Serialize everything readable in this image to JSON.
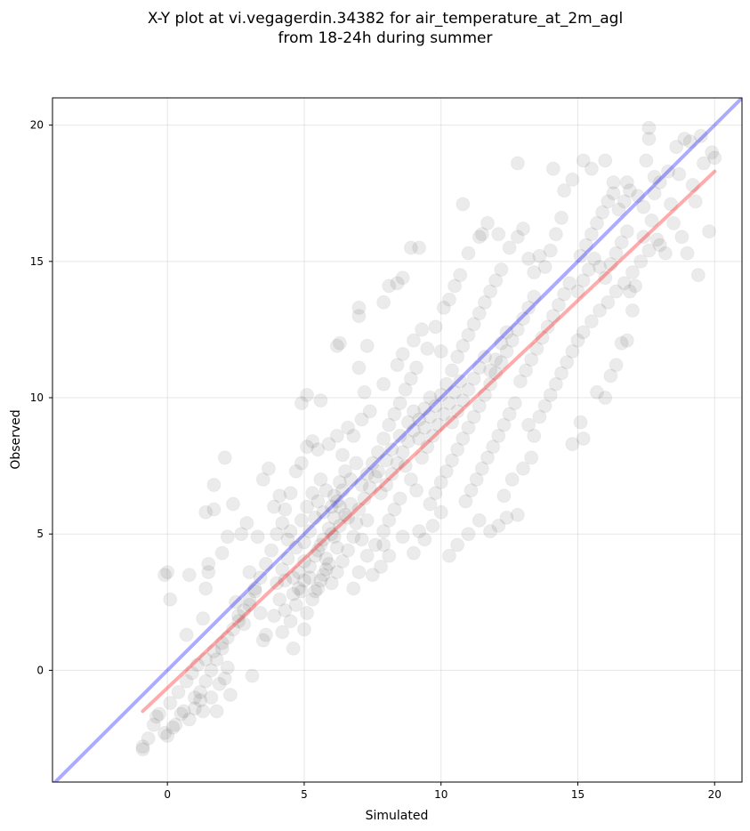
{
  "chart_data": {
    "type": "scatter",
    "title_line1": "X-Y plot at vi.vegagerdin.34382 for air_temperature_at_2m_agl",
    "title_line2": "from 18-24h during summer",
    "xlabel": "Simulated",
    "ylabel": "Observed",
    "xlim": [
      -4.2,
      21.0
    ],
    "ylim": [
      -4.1,
      21.0
    ],
    "xticks": [
      0,
      5,
      10,
      15,
      20
    ],
    "yticks": [
      0,
      5,
      10,
      15,
      20
    ],
    "grid": true,
    "point_color": "#000000",
    "point_alpha": 0.08,
    "identity_line": {
      "color": "#0000ff",
      "alpha": 0.33,
      "x": [
        -4.2,
        21.0
      ],
      "y": [
        -4.2,
        21.0
      ]
    },
    "regression_line": {
      "color": "#ff0000",
      "alpha": 0.33,
      "x": [
        -0.9,
        20.0
      ],
      "y": [
        -1.5,
        18.3
      ]
    },
    "points": [
      [
        -0.9,
        -2.9
      ],
      [
        -0.9,
        -2.8
      ],
      [
        -0.7,
        -2.5
      ],
      [
        -0.5,
        -2.0
      ],
      [
        -0.4,
        -1.7
      ],
      [
        -0.1,
        -2.3
      ],
      [
        0.0,
        -2.4
      ],
      [
        0.2,
        -2.1
      ],
      [
        0.3,
        -2.0
      ],
      [
        0.5,
        -1.6
      ],
      [
        0.6,
        -1.5
      ],
      [
        0.8,
        -1.8
      ],
      [
        1.0,
        -1.4
      ],
      [
        1.2,
        -1.1
      ],
      [
        1.3,
        -1.5
      ],
      [
        1.6,
        -1.0
      ],
      [
        1.8,
        -1.5
      ],
      [
        1.9,
        -0.5
      ],
      [
        2.1,
        -0.3
      ],
      [
        2.3,
        -0.9
      ],
      [
        -0.3,
        -1.6
      ],
      [
        0.1,
        -1.2
      ],
      [
        0.4,
        -0.8
      ],
      [
        0.7,
        -0.4
      ],
      [
        0.9,
        -0.1
      ],
      [
        1.1,
        0.2
      ],
      [
        1.4,
        0.4
      ],
      [
        1.7,
        0.7
      ],
      [
        2.0,
        1.0
      ],
      [
        2.2,
        0.1
      ],
      [
        0.0,
        3.6
      ],
      [
        -0.1,
        3.5
      ],
      [
        0.8,
        3.5
      ],
      [
        0.1,
        2.6
      ],
      [
        0.7,
        1.3
      ],
      [
        1.3,
        1.9
      ],
      [
        1.4,
        3.0
      ],
      [
        1.5,
        3.6
      ],
      [
        1.5,
        3.9
      ],
      [
        1.7,
        5.9
      ],
      [
        1.4,
        5.8
      ],
      [
        1.7,
        6.8
      ],
      [
        2.1,
        7.8
      ],
      [
        2.4,
        6.1
      ],
      [
        2.2,
        4.9
      ],
      [
        2.0,
        4.3
      ],
      [
        2.7,
        5.0
      ],
      [
        2.9,
        5.4
      ],
      [
        3.0,
        3.6
      ],
      [
        3.3,
        4.9
      ],
      [
        2.5,
        2.5
      ],
      [
        2.6,
        2.0
      ],
      [
        2.8,
        1.7
      ],
      [
        3.0,
        2.4
      ],
      [
        3.2,
        2.9
      ],
      [
        3.4,
        2.1
      ],
      [
        3.5,
        1.1
      ],
      [
        3.6,
        1.3
      ],
      [
        3.9,
        2.0
      ],
      [
        3.1,
        -0.2
      ],
      [
        3.5,
        7.0
      ],
      [
        3.7,
        7.4
      ],
      [
        3.9,
        6.0
      ],
      [
        4.1,
        6.4
      ],
      [
        4.3,
        5.9
      ],
      [
        4.5,
        6.5
      ],
      [
        4.7,
        7.3
      ],
      [
        4.9,
        7.6
      ],
      [
        5.1,
        8.2
      ],
      [
        5.3,
        8.4
      ],
      [
        4.9,
        9.8
      ],
      [
        5.1,
        10.1
      ],
      [
        5.6,
        9.9
      ],
      [
        5.5,
        8.1
      ],
      [
        5.9,
        8.3
      ],
      [
        6.2,
        8.6
      ],
      [
        6.4,
        7.9
      ],
      [
        6.6,
        8.9
      ],
      [
        6.8,
        8.6
      ],
      [
        7.1,
        9.2
      ],
      [
        4.0,
        3.2
      ],
      [
        4.2,
        3.7
      ],
      [
        4.4,
        4.1
      ],
      [
        4.6,
        3.4
      ],
      [
        4.8,
        3.0
      ],
      [
        4.1,
        2.6
      ],
      [
        4.3,
        2.2
      ],
      [
        4.5,
        1.8
      ],
      [
        4.7,
        2.4
      ],
      [
        4.9,
        2.9
      ],
      [
        5.0,
        3.3
      ],
      [
        5.2,
        3.8
      ],
      [
        5.4,
        4.2
      ],
      [
        5.6,
        4.6
      ],
      [
        5.8,
        4.1
      ],
      [
        5.1,
        2.1
      ],
      [
        5.3,
        2.6
      ],
      [
        5.5,
        3.0
      ],
      [
        5.7,
        3.5
      ],
      [
        5.9,
        3.9
      ],
      [
        4.6,
        0.8
      ],
      [
        5.0,
        1.5
      ],
      [
        4.2,
        1.4
      ],
      [
        6.1,
        4.9
      ],
      [
        6.3,
        5.3
      ],
      [
        6.5,
        5.7
      ],
      [
        6.7,
        6.1
      ],
      [
        6.9,
        5.4
      ],
      [
        7.1,
        4.8
      ],
      [
        7.3,
        5.5
      ],
      [
        6.0,
        5.0
      ],
      [
        6.2,
        4.5
      ],
      [
        6.4,
        4.0
      ],
      [
        6.6,
        4.4
      ],
      [
        6.8,
        4.9
      ],
      [
        7.0,
        5.9
      ],
      [
        7.2,
        6.3
      ],
      [
        7.4,
        6.7
      ],
      [
        7.6,
        7.1
      ],
      [
        7.8,
        6.5
      ],
      [
        6.1,
        6.4
      ],
      [
        6.3,
        6.9
      ],
      [
        6.5,
        7.3
      ],
      [
        6.7,
        7.0
      ],
      [
        6.9,
        7.6
      ],
      [
        5.8,
        6.6
      ],
      [
        5.6,
        7.0
      ],
      [
        5.4,
        5.6
      ],
      [
        5.2,
        5.1
      ],
      [
        5.0,
        4.7
      ],
      [
        6.8,
        3.0
      ],
      [
        7.0,
        3.6
      ],
      [
        7.5,
        3.5
      ],
      [
        7.8,
        3.8
      ],
      [
        7.3,
        4.2
      ],
      [
        7.6,
        4.6
      ],
      [
        7.9,
        5.1
      ],
      [
        8.1,
        5.5
      ],
      [
        8.3,
        5.9
      ],
      [
        8.5,
        6.3
      ],
      [
        8.0,
        6.8
      ],
      [
        8.2,
        7.2
      ],
      [
        8.4,
        7.6
      ],
      [
        8.6,
        8.0
      ],
      [
        8.8,
        8.4
      ],
      [
        9.0,
        8.8
      ],
      [
        9.2,
        9.2
      ],
      [
        9.4,
        9.6
      ],
      [
        9.6,
        10.0
      ],
      [
        8.7,
        7.5
      ],
      [
        8.9,
        7.0
      ],
      [
        9.1,
        6.6
      ],
      [
        9.3,
        7.8
      ],
      [
        9.5,
        8.2
      ],
      [
        9.7,
        8.6
      ],
      [
        9.9,
        9.0
      ],
      [
        10.1,
        9.4
      ],
      [
        10.3,
        9.8
      ],
      [
        10.5,
        10.2
      ],
      [
        10.7,
        10.6
      ],
      [
        7.7,
        8.0
      ],
      [
        7.9,
        8.5
      ],
      [
        8.1,
        9.0
      ],
      [
        8.3,
        9.4
      ],
      [
        8.5,
        9.8
      ],
      [
        8.7,
        10.3
      ],
      [
        8.9,
        10.7
      ],
      [
        9.1,
        11.1
      ],
      [
        7.4,
        9.5
      ],
      [
        7.2,
        10.2
      ],
      [
        7.0,
        11.1
      ],
      [
        7.3,
        11.9
      ],
      [
        7.9,
        10.5
      ],
      [
        8.4,
        11.2
      ],
      [
        8.6,
        11.6
      ],
      [
        9.0,
        12.1
      ],
      [
        9.3,
        12.5
      ],
      [
        9.5,
        11.8
      ],
      [
        9.8,
        12.6
      ],
      [
        10.0,
        11.7
      ],
      [
        6.3,
        12.0
      ],
      [
        6.2,
        11.9
      ],
      [
        7.0,
        13.0
      ],
      [
        7.0,
        13.3
      ],
      [
        7.9,
        13.5
      ],
      [
        8.1,
        14.1
      ],
      [
        8.4,
        14.2
      ],
      [
        8.6,
        14.4
      ],
      [
        8.9,
        15.5
      ],
      [
        9.2,
        15.5
      ],
      [
        7.9,
        4.6
      ],
      [
        8.1,
        4.2
      ],
      [
        8.6,
        4.9
      ],
      [
        9.0,
        4.3
      ],
      [
        9.2,
        5.1
      ],
      [
        9.4,
        4.8
      ],
      [
        9.7,
        5.3
      ],
      [
        10.0,
        5.8
      ],
      [
        10.3,
        4.2
      ],
      [
        10.6,
        4.6
      ],
      [
        9.6,
        6.1
      ],
      [
        9.8,
        6.5
      ],
      [
        10.0,
        6.9
      ],
      [
        10.2,
        7.3
      ],
      [
        10.4,
        7.7
      ],
      [
        10.6,
        8.1
      ],
      [
        10.8,
        8.5
      ],
      [
        11.0,
        8.9
      ],
      [
        11.2,
        9.3
      ],
      [
        11.4,
        9.7
      ],
      [
        10.9,
        6.2
      ],
      [
        11.1,
        6.6
      ],
      [
        11.3,
        7.0
      ],
      [
        11.5,
        7.4
      ],
      [
        11.7,
        7.8
      ],
      [
        11.9,
        8.2
      ],
      [
        12.1,
        8.6
      ],
      [
        12.3,
        9.0
      ],
      [
        12.5,
        9.4
      ],
      [
        12.7,
        9.8
      ],
      [
        11.0,
        5.0
      ],
      [
        11.4,
        5.5
      ],
      [
        11.8,
        5.1
      ],
      [
        12.1,
        5.3
      ],
      [
        12.4,
        5.6
      ],
      [
        12.8,
        5.7
      ],
      [
        12.3,
        6.4
      ],
      [
        12.6,
        7.0
      ],
      [
        13.0,
        7.4
      ],
      [
        13.3,
        7.8
      ],
      [
        10.4,
        11.0
      ],
      [
        10.6,
        11.5
      ],
      [
        10.8,
        11.9
      ],
      [
        11.0,
        12.3
      ],
      [
        11.2,
        12.7
      ],
      [
        11.4,
        13.1
      ],
      [
        11.6,
        13.5
      ],
      [
        11.8,
        13.9
      ],
      [
        12.0,
        14.3
      ],
      [
        12.2,
        14.7
      ],
      [
        10.1,
        13.3
      ],
      [
        10.3,
        13.6
      ],
      [
        10.5,
        14.1
      ],
      [
        10.7,
        14.5
      ],
      [
        11.0,
        15.3
      ],
      [
        11.4,
        15.9
      ],
      [
        11.7,
        16.4
      ],
      [
        12.1,
        16.0
      ],
      [
        10.8,
        17.1
      ],
      [
        11.5,
        16.0
      ],
      [
        11.6,
        10.1
      ],
      [
        11.8,
        10.5
      ],
      [
        12.0,
        10.9
      ],
      [
        12.2,
        11.3
      ],
      [
        12.4,
        11.7
      ],
      [
        12.6,
        12.1
      ],
      [
        12.8,
        12.5
      ],
      [
        13.0,
        12.9
      ],
      [
        13.2,
        13.3
      ],
      [
        13.4,
        13.7
      ],
      [
        12.9,
        10.6
      ],
      [
        13.1,
        11.0
      ],
      [
        13.3,
        11.4
      ],
      [
        13.5,
        11.8
      ],
      [
        13.7,
        12.2
      ],
      [
        13.9,
        12.6
      ],
      [
        14.1,
        13.0
      ],
      [
        14.3,
        13.4
      ],
      [
        14.5,
        13.8
      ],
      [
        14.7,
        14.2
      ],
      [
        13.2,
        9.0
      ],
      [
        13.4,
        8.6
      ],
      [
        13.6,
        9.3
      ],
      [
        13.8,
        9.7
      ],
      [
        14.0,
        10.1
      ],
      [
        14.2,
        10.5
      ],
      [
        14.4,
        10.9
      ],
      [
        14.6,
        11.3
      ],
      [
        14.8,
        11.7
      ],
      [
        15.0,
        12.1
      ],
      [
        12.5,
        15.5
      ],
      [
        12.8,
        15.9
      ],
      [
        13.0,
        16.2
      ],
      [
        13.2,
        15.1
      ],
      [
        13.4,
        14.6
      ],
      [
        13.6,
        15.2
      ],
      [
        13.8,
        14.8
      ],
      [
        14.0,
        15.4
      ],
      [
        14.2,
        16.0
      ],
      [
        14.4,
        16.6
      ],
      [
        12.8,
        18.6
      ],
      [
        14.1,
        18.4
      ],
      [
        14.5,
        17.6
      ],
      [
        14.8,
        18.0
      ],
      [
        15.2,
        18.7
      ],
      [
        15.5,
        18.4
      ],
      [
        16.0,
        18.7
      ],
      [
        16.3,
        17.9
      ],
      [
        16.8,
        17.9
      ],
      [
        17.5,
        18.7
      ],
      [
        15.1,
        15.2
      ],
      [
        15.3,
        15.6
      ],
      [
        15.5,
        16.0
      ],
      [
        15.7,
        16.4
      ],
      [
        15.9,
        16.8
      ],
      [
        16.1,
        17.2
      ],
      [
        16.3,
        17.5
      ],
      [
        16.5,
        16.9
      ],
      [
        16.7,
        17.2
      ],
      [
        16.9,
        17.6
      ],
      [
        15.0,
        13.9
      ],
      [
        15.2,
        14.3
      ],
      [
        15.4,
        14.7
      ],
      [
        15.6,
        15.1
      ],
      [
        15.8,
        14.8
      ],
      [
        16.0,
        14.4
      ],
      [
        16.2,
        14.9
      ],
      [
        16.4,
        15.3
      ],
      [
        16.6,
        15.7
      ],
      [
        16.8,
        16.1
      ],
      [
        15.1,
        9.1
      ],
      [
        15.2,
        8.5
      ],
      [
        14.8,
        8.3
      ],
      [
        15.7,
        10.2
      ],
      [
        16.0,
        10.0
      ],
      [
        16.2,
        10.8
      ],
      [
        16.4,
        11.2
      ],
      [
        16.6,
        12.0
      ],
      [
        16.8,
        12.1
      ],
      [
        17.0,
        13.2
      ],
      [
        15.2,
        12.4
      ],
      [
        15.5,
        12.8
      ],
      [
        15.8,
        13.2
      ],
      [
        16.1,
        13.5
      ],
      [
        16.4,
        13.9
      ],
      [
        16.7,
        14.2
      ],
      [
        17.0,
        14.6
      ],
      [
        17.3,
        15.0
      ],
      [
        17.6,
        15.4
      ],
      [
        17.9,
        15.8
      ],
      [
        17.2,
        17.4
      ],
      [
        17.4,
        17.0
      ],
      [
        17.6,
        19.5
      ],
      [
        17.6,
        19.9
      ],
      [
        17.8,
        18.1
      ],
      [
        18.0,
        17.9
      ],
      [
        18.3,
        18.3
      ],
      [
        18.6,
        19.2
      ],
      [
        18.9,
        19.5
      ],
      [
        19.1,
        19.4
      ],
      [
        18.0,
        15.6
      ],
      [
        18.2,
        15.3
      ],
      [
        18.5,
        16.4
      ],
      [
        18.8,
        15.9
      ],
      [
        19.0,
        15.3
      ],
      [
        19.3,
        17.2
      ],
      [
        19.6,
        18.6
      ],
      [
        19.8,
        16.1
      ],
      [
        19.9,
        19.0
      ],
      [
        20.0,
        18.8
      ],
      [
        19.4,
        14.5
      ],
      [
        18.7,
        18.2
      ],
      [
        19.2,
        17.8
      ],
      [
        19.5,
        19.6
      ],
      [
        18.4,
        17.1
      ],
      [
        17.7,
        16.5
      ],
      [
        17.1,
        14.1
      ],
      [
        16.9,
        13.9
      ],
      [
        17.4,
        15.9
      ],
      [
        17.8,
        17.5
      ],
      [
        3.8,
        4.4
      ],
      [
        4.0,
        5.0
      ],
      [
        4.2,
        5.4
      ],
      [
        4.4,
        4.8
      ],
      [
        3.6,
        3.9
      ],
      [
        3.4,
        3.4
      ],
      [
        3.2,
        3.0
      ],
      [
        3.0,
        2.6
      ],
      [
        2.8,
        2.2
      ],
      [
        2.6,
        1.8
      ],
      [
        2.4,
        1.5
      ],
      [
        2.2,
        1.2
      ],
      [
        2.0,
        0.8
      ],
      [
        1.8,
        0.4
      ],
      [
        1.6,
        0.0
      ],
      [
        1.4,
        -0.4
      ],
      [
        1.2,
        -0.8
      ],
      [
        1.0,
        -1.0
      ],
      [
        5.5,
        6.2
      ],
      [
        5.7,
        5.8
      ],
      [
        6.0,
        6.0
      ],
      [
        6.2,
        6.2
      ],
      [
        6.4,
        6.6
      ],
      [
        6.6,
        5.6
      ],
      [
        7.1,
        6.8
      ],
      [
        7.3,
        7.2
      ],
      [
        7.5,
        7.6
      ],
      [
        7.7,
        7.3
      ],
      [
        8.0,
        7.7
      ],
      [
        8.2,
        8.1
      ],
      [
        8.5,
        8.6
      ],
      [
        8.8,
        9.1
      ],
      [
        9.0,
        9.5
      ],
      [
        9.2,
        8.5
      ],
      [
        9.4,
        8.9
      ],
      [
        9.6,
        9.3
      ],
      [
        9.8,
        9.7
      ],
      [
        10.0,
        10.1
      ],
      [
        10.2,
        10.5
      ],
      [
        10.4,
        9.1
      ],
      [
        10.6,
        9.5
      ],
      [
        10.8,
        9.9
      ],
      [
        11.0,
        10.3
      ],
      [
        11.2,
        10.7
      ],
      [
        11.4,
        11.1
      ],
      [
        11.6,
        11.5
      ],
      [
        11.8,
        11.0
      ],
      [
        12.0,
        11.4
      ],
      [
        12.2,
        12.0
      ],
      [
        12.4,
        12.4
      ],
      [
        4.5,
        5.1
      ],
      [
        4.7,
        4.5
      ],
      [
        4.9,
        5.5
      ],
      [
        5.1,
        6.0
      ],
      [
        5.3,
        6.5
      ],
      [
        5.5,
        4.4
      ],
      [
        5.7,
        4.8
      ],
      [
        5.9,
        5.2
      ],
      [
        6.1,
        5.6
      ],
      [
        6.3,
        6.0
      ],
      [
        4.3,
        3.3
      ],
      [
        4.6,
        2.8
      ],
      [
        4.8,
        3.6
      ],
      [
        5.0,
        4.0
      ],
      [
        5.2,
        3.4
      ],
      [
        5.4,
        2.9
      ],
      [
        5.6,
        3.3
      ],
      [
        5.8,
        3.7
      ],
      [
        6.0,
        3.2
      ],
      [
        6.2,
        3.6
      ]
    ]
  }
}
